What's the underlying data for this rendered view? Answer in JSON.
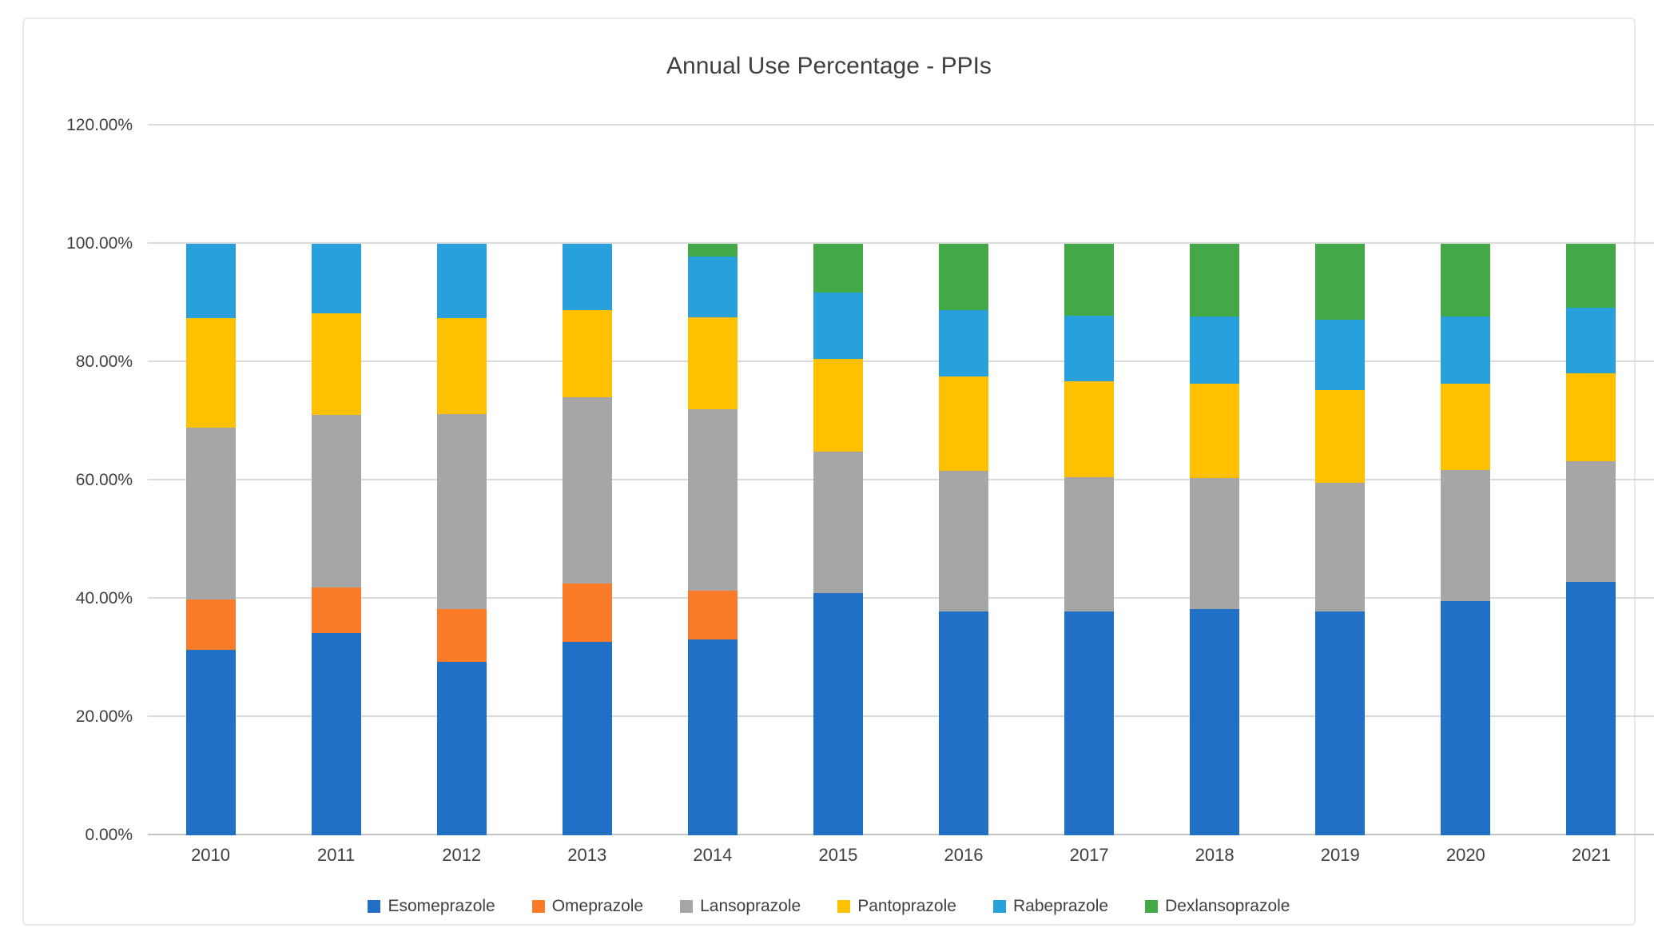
{
  "chart_data": {
    "type": "bar",
    "stacked": true,
    "title": "Annual Use Percentage - PPIs",
    "xlabel": "",
    "ylabel": "",
    "ylim": [
      0,
      120
    ],
    "grid": true,
    "legend_position": "bottom",
    "categories": [
      "2010",
      "2011",
      "2012",
      "2013",
      "2014",
      "2015",
      "2016",
      "2017",
      "2018",
      "2019",
      "2020",
      "2021"
    ],
    "yticks": [
      {
        "value": 0,
        "label": "0.00%"
      },
      {
        "value": 20,
        "label": "20.00%"
      },
      {
        "value": 40,
        "label": "40.00%"
      },
      {
        "value": 60,
        "label": "60.00%"
      },
      {
        "value": 80,
        "label": "80.00%"
      },
      {
        "value": 100,
        "label": "100.00%"
      },
      {
        "value": 120,
        "label": "120.00%"
      }
    ],
    "series": [
      {
        "name": "Esomeprazole",
        "color": "#2070c6",
        "values": [
          31.3,
          34.2,
          29.3,
          32.7,
          33.1,
          40.9,
          37.9,
          37.9,
          38.3,
          37.8,
          39.6,
          42.8
        ]
      },
      {
        "name": "Omeprazole",
        "color": "#fa7b28",
        "values": [
          8.6,
          7.7,
          9.0,
          9.9,
          8.2,
          0,
          0,
          0,
          0,
          0,
          0,
          0
        ]
      },
      {
        "name": "Lansoprazole",
        "color": "#a6a6a6",
        "values": [
          29.0,
          29.2,
          32.9,
          31.4,
          30.7,
          23.9,
          23.7,
          22.7,
          22.1,
          21.8,
          22.1,
          20.5
        ]
      },
      {
        "name": "Pantoprazole",
        "color": "#ffc000",
        "values": [
          18.5,
          17.2,
          16.3,
          14.8,
          15.6,
          15.7,
          16.0,
          16.1,
          15.9,
          15.7,
          14.7,
          14.8
        ]
      },
      {
        "name": "Rabeprazole",
        "color": "#28a0db",
        "values": [
          12.6,
          11.7,
          12.5,
          11.2,
          10.2,
          11.3,
          11.2,
          11.2,
          11.4,
          11.8,
          11.3,
          11.1
        ]
      },
      {
        "name": "Dexlansoprazole",
        "color": "#43a846",
        "values": [
          0,
          0,
          0,
          0,
          2.2,
          8.2,
          11.2,
          12.1,
          12.3,
          12.9,
          12.3,
          10.8
        ]
      }
    ]
  }
}
